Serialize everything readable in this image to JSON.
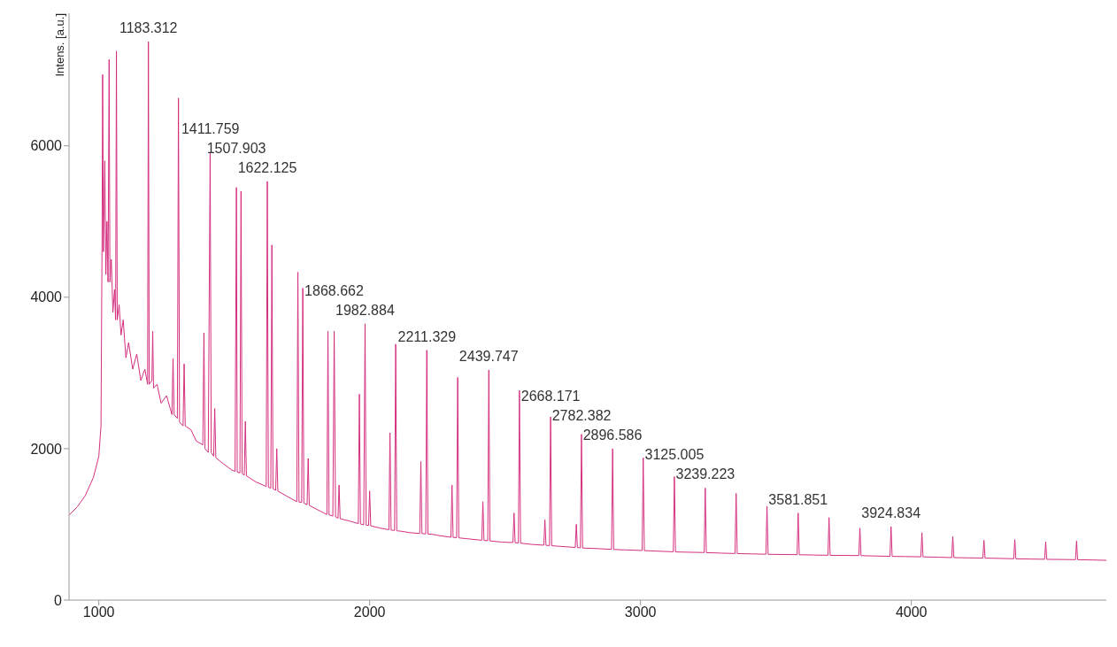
{
  "chart_data": {
    "type": "line",
    "ylabel": "Intens. [a.u.]",
    "xlim": [
      890,
      4720
    ],
    "xticks": [
      1000,
      2000,
      3000,
      4000
    ],
    "ylim": [
      0,
      7750
    ],
    "yticks": [
      0,
      2000,
      4000,
      6000
    ],
    "grid": false,
    "legend": false,
    "marker": "none",
    "line_style": "solid",
    "series": [
      {
        "color": "#d42f7f",
        "x": [
          890,
          920,
          950,
          980,
          1000,
          1008,
          1012,
          1014,
          1017,
          1022,
          1026,
          1030,
          1034,
          1038,
          1041,
          1046,
          1052,
          1058,
          1062,
          1065,
          1068,
          1075,
          1082,
          1090,
          1100,
          1110,
          1125,
          1140,
          1155,
          1170,
          1180,
          1183,
          1186,
          1196,
          1199,
          1202,
          1215,
          1230,
          1250,
          1270,
          1274,
          1278,
          1290,
          1294,
          1298,
          1311,
          1315,
          1319,
          1340,
          1360,
          1384,
          1388,
          1392,
          1404,
          1411,
          1415,
          1424,
          1428,
          1432,
          1460,
          1490,
          1503,
          1508,
          1511,
          1521,
          1525,
          1529,
          1537,
          1541,
          1545,
          1580,
          1618,
          1622,
          1626,
          1635,
          1639,
          1643,
          1653,
          1657,
          1661,
          1700,
          1731,
          1735,
          1739,
          1749,
          1753,
          1757,
          1769,
          1773,
          1777,
          1815,
          1842,
          1846,
          1850,
          1864,
          1869,
          1874,
          1883,
          1887,
          1891,
          1930,
          1958,
          1962,
          1966,
          1978,
          1983,
          1987,
          1996,
          2000,
          2004,
          2040,
          2071,
          2075,
          2079,
          2092,
          2096,
          2100,
          2115,
          2150,
          2185,
          2189,
          2193,
          2207,
          2211,
          2215,
          2230,
          2260,
          2300,
          2304,
          2308,
          2321,
          2325,
          2329,
          2360,
          2414,
          2418,
          2422,
          2436,
          2440,
          2444,
          2490,
          2529,
          2533,
          2537,
          2549,
          2553,
          2557,
          2600,
          2643,
          2647,
          2651,
          2664,
          2668,
          2672,
          2720,
          2759,
          2763,
          2767,
          2778,
          2782,
          2786,
          2840,
          2893,
          2897,
          2901,
          2950,
          3006,
          3010,
          3014,
          3070,
          3121,
          3125,
          3129,
          3180,
          3235,
          3239,
          3243,
          3300,
          3349,
          3353,
          3357,
          3410,
          3463,
          3467,
          3471,
          3530,
          3578,
          3582,
          3586,
          3640,
          3692,
          3696,
          3700,
          3750,
          3806,
          3810,
          3814,
          3870,
          3921,
          3925,
          3929,
          3980,
          4035,
          4039,
          4043,
          4100,
          4149,
          4153,
          4157,
          4210,
          4264,
          4268,
          4272,
          4330,
          4378,
          4382,
          4386,
          4440,
          4492,
          4496,
          4500,
          4560,
          4606,
          4610,
          4614,
          4670,
          4720
        ],
        "values": [
          1120,
          1230,
          1380,
          1620,
          1900,
          2300,
          4800,
          6940,
          4600,
          5800,
          4300,
          5000,
          4200,
          7140,
          4200,
          4500,
          3800,
          4100,
          3700,
          7250,
          3700,
          3900,
          3500,
          3700,
          3200,
          3400,
          3050,
          3250,
          2900,
          3050,
          2850,
          7376,
          2850,
          2900,
          3550,
          2800,
          2850,
          2600,
          2700,
          2450,
          3190,
          2450,
          2400,
          6630,
          2350,
          2300,
          3120,
          2300,
          2250,
          2100,
          2050,
          3530,
          2000,
          1950,
          5910,
          1950,
          1900,
          2530,
          1880,
          1800,
          1720,
          1700,
          5450,
          1690,
          1680,
          5400,
          1670,
          1650,
          2360,
          1640,
          1560,
          1500,
          5530,
          1490,
          1480,
          4690,
          1470,
          1450,
          2000,
          1440,
          1360,
          1300,
          4330,
          1295,
          1290,
          4120,
          1280,
          1260,
          1870,
          1250,
          1180,
          1130,
          3550,
          1125,
          1110,
          3550,
          1100,
          1080,
          1520,
          1075,
          1040,
          1010,
          2720,
          1005,
          995,
          3650,
          990,
          985,
          1440,
          980,
          950,
          930,
          2210,
          925,
          920,
          3380,
          915,
          910,
          890,
          880,
          1830,
          878,
          875,
          3300,
          872,
          870,
          850,
          830,
          1520,
          828,
          825,
          2940,
          822,
          810,
          790,
          1300,
          788,
          785,
          3040,
          782,
          765,
          760,
          1150,
          758,
          755,
          2770,
          752,
          735,
          725,
          1060,
          723,
          720,
          2420,
          718,
          705,
          695,
          1000,
          693,
          690,
          2190,
          688,
          680,
          670,
          2000,
          668,
          662,
          655,
          1880,
          654,
          645,
          638,
          1630,
          636,
          632,
          628,
          1480,
          627,
          620,
          615,
          1410,
          614,
          610,
          606,
          1240,
          605,
          602,
          600,
          1150,
          599,
          595,
          592,
          1090,
          591,
          590,
          588,
          950,
          587,
          582,
          578,
          970,
          577,
          575,
          572,
          890,
          571,
          566,
          562,
          840,
          561,
          558,
          555,
          790,
          554,
          550,
          546,
          800,
          545,
          542,
          539,
          770,
          538,
          536,
          534,
          780,
          533,
          530,
          525
        ]
      }
    ],
    "annotations": [
      {
        "text": "1183.312",
        "x": 1183.312,
        "y": 7376
      },
      {
        "text": "1411.759",
        "x": 1411.759,
        "y": 5910
      },
      {
        "text": "1507.903",
        "x": 1507.903,
        "y": 5450
      },
      {
        "text": "1622.125",
        "x": 1622.125,
        "y": 5530
      },
      {
        "text": "1868.662",
        "x": 1868.662,
        "y": 3550
      },
      {
        "text": "1982.884",
        "x": 1982.884,
        "y": 3650
      },
      {
        "text": "2211.329",
        "x": 2211.329,
        "y": 3300
      },
      {
        "text": "2439.747",
        "x": 2439.747,
        "y": 3040
      },
      {
        "text": "2668.171",
        "x": 2668.171,
        "y": 2420
      },
      {
        "text": "2782.382",
        "x": 2782.382,
        "y": 2190
      },
      {
        "text": "2896.586",
        "x": 2896.586,
        "y": 2000
      },
      {
        "text": "3125.005",
        "x": 3125.005,
        "y": 1630
      },
      {
        "text": "3239.223",
        "x": 3239.223,
        "y": 1480
      },
      {
        "text": "3581.851",
        "x": 3581.851,
        "y": 1150
      },
      {
        "text": "3924.834",
        "x": 3924.834,
        "y": 970
      }
    ]
  }
}
